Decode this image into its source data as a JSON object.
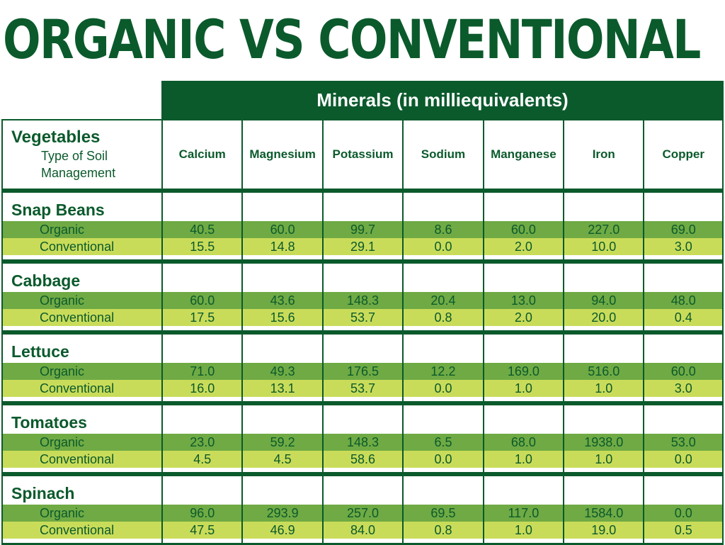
{
  "chart_data": {
    "type": "table",
    "title": "ORGANIC VS CONVENTIONAL",
    "subtitle": "Minerals (in milliequivalents)",
    "header": {
      "line1": "Vegetables",
      "line2": "Type of Soil",
      "line3": "Management"
    },
    "columns": [
      "Calcium",
      "Magnesium",
      "Potassium",
      "Sodium",
      "Manganese",
      "Iron",
      "Copper"
    ],
    "groups": [
      {
        "name": "Snap Beans",
        "rows": [
          {
            "label": "Organic",
            "values": [
              "40.5",
              "60.0",
              "99.7",
              "8.6",
              "60.0",
              "227.0",
              "69.0"
            ]
          },
          {
            "label": "Conventional",
            "values": [
              "15.5",
              "14.8",
              "29.1",
              "0.0",
              "2.0",
              "10.0",
              "3.0"
            ]
          }
        ]
      },
      {
        "name": "Cabbage",
        "rows": [
          {
            "label": "Organic",
            "values": [
              "60.0",
              "43.6",
              "148.3",
              "20.4",
              "13.0",
              "94.0",
              "48.0"
            ]
          },
          {
            "label": "Conventional",
            "values": [
              "17.5",
              "15.6",
              "53.7",
              "0.8",
              "2.0",
              "20.0",
              "0.4"
            ]
          }
        ]
      },
      {
        "name": "Lettuce",
        "rows": [
          {
            "label": "Organic",
            "values": [
              "71.0",
              "49.3",
              "176.5",
              "12.2",
              "169.0",
              "516.0",
              "60.0"
            ]
          },
          {
            "label": "Conventional",
            "values": [
              "16.0",
              "13.1",
              "53.7",
              "0.0",
              "1.0",
              "1.0",
              "3.0"
            ]
          }
        ]
      },
      {
        "name": "Tomatoes",
        "rows": [
          {
            "label": "Organic",
            "values": [
              "23.0",
              "59.2",
              "148.3",
              "6.5",
              "68.0",
              "1938.0",
              "53.0"
            ]
          },
          {
            "label": "Conventional",
            "values": [
              "4.5",
              "4.5",
              "58.6",
              "0.0",
              "1.0",
              "1.0",
              "0.0"
            ]
          }
        ]
      },
      {
        "name": "Spinach",
        "rows": [
          {
            "label": "Organic",
            "values": [
              "96.0",
              "293.9",
              "257.0",
              "69.5",
              "117.0",
              "1584.0",
              "0.0"
            ]
          },
          {
            "label": "Conventional",
            "values": [
              "47.5",
              "46.9",
              "84.0",
              "0.8",
              "1.0",
              "19.0",
              "0.5"
            ]
          }
        ]
      }
    ]
  },
  "colors": {
    "dark_green": "#0b5a2c",
    "organic_row": "#6faa44",
    "conventional_row": "#c9dc5a"
  }
}
